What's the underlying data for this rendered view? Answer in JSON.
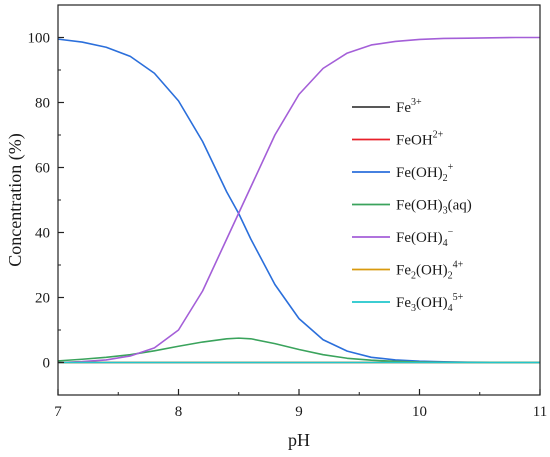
{
  "chart_data": {
    "type": "line",
    "xlabel": "pH",
    "ylabel": "Concentration (%)",
    "xlim": [
      7,
      11
    ],
    "ylim": [
      -10,
      110
    ],
    "x_ticks": [
      7,
      8,
      9,
      10,
      11
    ],
    "y_ticks": [
      0,
      20,
      40,
      60,
      80,
      100
    ],
    "x_tick_labels": [
      "7",
      "8",
      "9",
      "10",
      "11"
    ],
    "y_tick_labels": [
      "0",
      "20",
      "40",
      "60",
      "80",
      "100"
    ],
    "grid": false,
    "legend_position": "center-right",
    "x": [
      7.0,
      7.2,
      7.4,
      7.6,
      7.8,
      8.0,
      8.2,
      8.4,
      8.5,
      8.6,
      8.8,
      9.0,
      9.2,
      9.4,
      9.6,
      9.8,
      10.0,
      10.2,
      10.4,
      10.6,
      10.8,
      11.0
    ],
    "series": [
      {
        "name": "Fe3+",
        "legend": {
          "base": "Fe",
          "sup": "3+"
        },
        "color": "#404040",
        "values": [
          0,
          0,
          0,
          0,
          0,
          0,
          0,
          0,
          0,
          0,
          0,
          0,
          0,
          0,
          0,
          0,
          0,
          0,
          0,
          0,
          0,
          0
        ]
      },
      {
        "name": "FeOH2+",
        "legend": {
          "base": "FeOH",
          "sup": "2+"
        },
        "color": "#e8202a",
        "values": [
          0,
          0,
          0,
          0,
          0,
          0,
          0,
          0,
          0,
          0,
          0,
          0,
          0,
          0,
          0,
          0,
          0,
          0,
          0,
          0,
          0,
          0
        ]
      },
      {
        "name": "Fe(OH)2+",
        "legend": {
          "base": "Fe(OH)",
          "sub": "2",
          "sup": "+"
        },
        "color": "#2b6fdb",
        "values": [
          99.5,
          98.6,
          97.0,
          94.2,
          89.0,
          80.5,
          68.0,
          52.5,
          45.8,
          38.0,
          24.0,
          13.5,
          7.0,
          3.5,
          1.6,
          0.8,
          0.4,
          0.2,
          0.1,
          0.05,
          0.02,
          0.01
        ]
      },
      {
        "name": "Fe(OH)3(aq)",
        "legend": {
          "base": "Fe(OH)",
          "sub": "3",
          "tail": "(aq)"
        },
        "color": "#3aa35c",
        "values": [
          0.5,
          1.0,
          1.6,
          2.4,
          3.6,
          5.0,
          6.3,
          7.3,
          7.5,
          7.3,
          5.8,
          4.0,
          2.4,
          1.3,
          0.7,
          0.35,
          0.15,
          0.08,
          0.04,
          0.02,
          0.01,
          0.0
        ]
      },
      {
        "name": "Fe(OH)4−",
        "legend": {
          "base": "Fe(OH)",
          "sub": "4",
          "sup": "−"
        },
        "color": "#a45fd8",
        "values": [
          0.0,
          0.3,
          0.8,
          2.0,
          4.5,
          10.0,
          22.0,
          38.0,
          46.0,
          54.0,
          70.0,
          82.5,
          90.5,
          95.2,
          97.7,
          98.8,
          99.4,
          99.7,
          99.8,
          99.9,
          100.0,
          100.0
        ]
      },
      {
        "name": "Fe2(OH)24+",
        "legend": {
          "base": "Fe",
          "sub": "2",
          "mid": "(OH)",
          "sub2": "2",
          "sup": "4+"
        },
        "color": "#d99a0e",
        "values": [
          0,
          0,
          0,
          0,
          0,
          0,
          0,
          0,
          0,
          0,
          0,
          0,
          0,
          0,
          0,
          0,
          0,
          0,
          0,
          0,
          0,
          0
        ]
      },
      {
        "name": "Fe3(OH)45+",
        "legend": {
          "base": "Fe",
          "sub": "3",
          "mid": "(OH)",
          "sub2": "4",
          "sup": "5+"
        },
        "color": "#21c6cc",
        "values": [
          0,
          0,
          0,
          0,
          0,
          0,
          0,
          0,
          0,
          0,
          0,
          0,
          0,
          0,
          0,
          0,
          0,
          0,
          0,
          0,
          0,
          0
        ]
      }
    ]
  }
}
